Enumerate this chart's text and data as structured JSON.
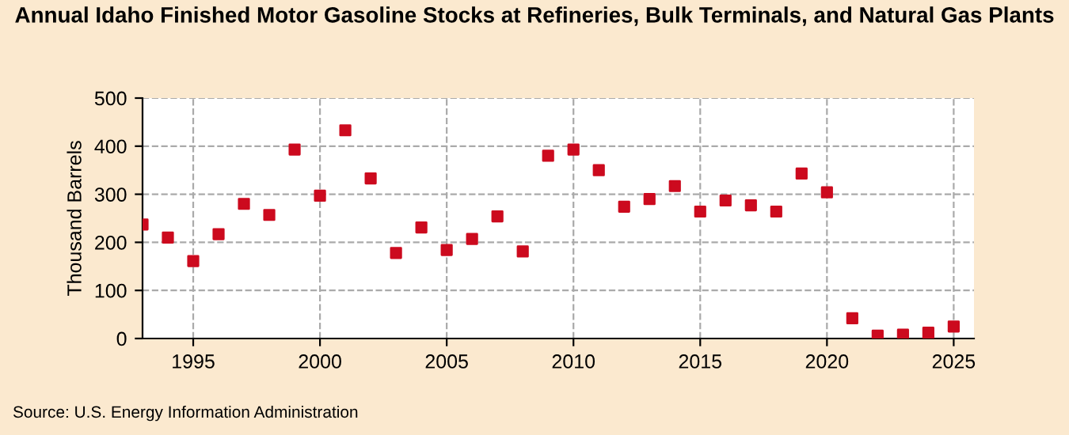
{
  "chart_data": {
    "type": "scatter",
    "title": "Annual Idaho Finished Motor Gasoline Stocks at Refineries, Bulk Terminals, and Natural Gas Plants",
    "ylabel": "Thousand Barrels",
    "x": [
      1993,
      1994,
      1995,
      1996,
      1997,
      1998,
      1999,
      2000,
      2001,
      2002,
      2003,
      2004,
      2005,
      2006,
      2007,
      2008,
      2009,
      2010,
      2011,
      2012,
      2013,
      2014,
      2015,
      2016,
      2017,
      2018,
      2019,
      2020,
      2021,
      2022,
      2023,
      2024,
      2025
    ],
    "series": [
      {
        "color": "#cc0a1e",
        "values": [
          237,
          210,
          161,
          217,
          280,
          257,
          393,
          297,
          433,
          333,
          178,
          231,
          184,
          207,
          254,
          181,
          380,
          393,
          350,
          274,
          290,
          317,
          264,
          287,
          277,
          264,
          343,
          304,
          42,
          6,
          8,
          12,
          25
        ]
      }
    ],
    "xlim": [
      1993,
      2025.8
    ],
    "xticks": [
      1995,
      2000,
      2005,
      2010,
      2015,
      2020,
      2025
    ],
    "ylim": [
      0,
      500
    ],
    "yticks": [
      0,
      100,
      200,
      300,
      400,
      500
    ],
    "grid": true,
    "marker": "square",
    "legend": false,
    "annotations": [
      "Source: U.S. Energy Information Administration"
    ]
  }
}
